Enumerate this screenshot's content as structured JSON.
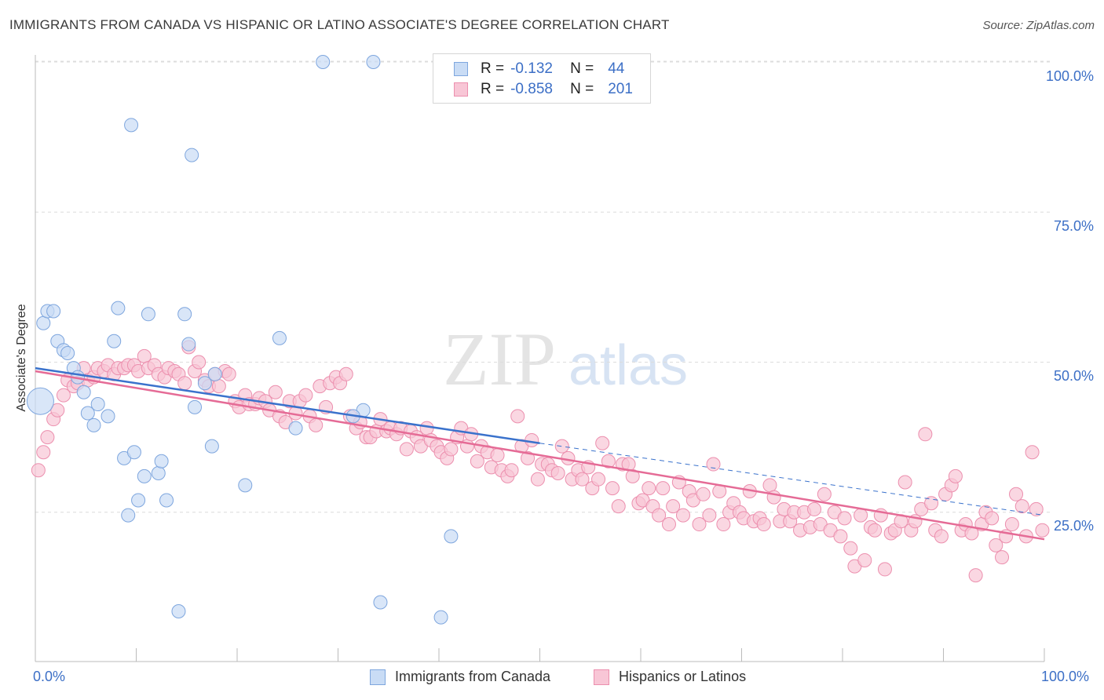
{
  "header": {
    "title": "IMMIGRANTS FROM CANADA VS HISPANIC OR LATINO ASSOCIATE'S DEGREE CORRELATION CHART",
    "source": "Source: ZipAtlas.com"
  },
  "legend": {
    "rows": [
      {
        "r_label": "R =",
        "r_value": "-0.132",
        "n_label": "N =",
        "n_value": "44"
      },
      {
        "r_label": "R =",
        "r_value": "-0.858",
        "n_label": "N =",
        "n_value": "201"
      }
    ]
  },
  "colors": {
    "blue_fill": "#c9dcf5",
    "blue_stroke": "#7ea6de",
    "blue_line": "#3a72cc",
    "pink_fill": "#f8c6d6",
    "pink_stroke": "#ec8fae",
    "pink_line": "#e56b96",
    "tick_text": "#3c6fc6",
    "grid": "#dcdcdc"
  },
  "chart_data": {
    "type": "scatter",
    "title": "IMMIGRANTS FROM CANADA VS HISPANIC OR LATINO ASSOCIATE'S DEGREE CORRELATION CHART",
    "xlabel": "",
    "ylabel": "Associate's Degree",
    "xlim": [
      0,
      100
    ],
    "ylim": [
      0,
      105
    ],
    "x_tick_labels": [
      "0.0%",
      "100.0%"
    ],
    "y_ticks": [
      {
        "value": 25,
        "label": "25.0%"
      },
      {
        "value": 50,
        "label": "50.0%"
      },
      {
        "value": 75,
        "label": "75.0%"
      },
      {
        "value": 100,
        "label": "100.0%"
      }
    ],
    "grid": true,
    "legend_position": "bottom",
    "watermark": {
      "text1": "ZIP",
      "text2": "atlas"
    },
    "series": [
      {
        "name": "Immigrants from Canada",
        "color": "#7ea6de",
        "points": [
          [
            0.5,
            43.5,
            "large"
          ],
          [
            0.8,
            56.5
          ],
          [
            1.2,
            58.5
          ],
          [
            1.8,
            58.5
          ],
          [
            2.2,
            53.5
          ],
          [
            2.8,
            52
          ],
          [
            3.2,
            51.5
          ],
          [
            3.8,
            49
          ],
          [
            4.2,
            47.5
          ],
          [
            4.8,
            45
          ],
          [
            5.2,
            41.5
          ],
          [
            5.8,
            39.5
          ],
          [
            6.2,
            43
          ],
          [
            7.2,
            41
          ],
          [
            7.8,
            53.5
          ],
          [
            8.2,
            59
          ],
          [
            8.8,
            34
          ],
          [
            9.8,
            35
          ],
          [
            9.2,
            24.5
          ],
          [
            9.5,
            89.5
          ],
          [
            10.2,
            27
          ],
          [
            10.8,
            31
          ],
          [
            11.2,
            58
          ],
          [
            12.2,
            31.5
          ],
          [
            12.5,
            33.5
          ],
          [
            13.0,
            27
          ],
          [
            14.2,
            8.5
          ],
          [
            14.8,
            58
          ],
          [
            15.2,
            53
          ],
          [
            15.5,
            84.5
          ],
          [
            15.8,
            42.5
          ],
          [
            16.8,
            46.5
          ],
          [
            17.5,
            36
          ],
          [
            17.8,
            48
          ],
          [
            20.8,
            29.5
          ],
          [
            24.2,
            54
          ],
          [
            25.8,
            39
          ],
          [
            28.5,
            100
          ],
          [
            32.5,
            42
          ],
          [
            33.5,
            100
          ],
          [
            34.2,
            10
          ],
          [
            41.2,
            21
          ],
          [
            40.2,
            7.5
          ],
          [
            31.5,
            41
          ]
        ]
      },
      {
        "name": "Hispanics or Latinos",
        "color": "#ec8fae",
        "points": [
          [
            0.3,
            32
          ],
          [
            0.8,
            35
          ],
          [
            1.2,
            37.5
          ],
          [
            1.8,
            40.5
          ],
          [
            2.2,
            42
          ],
          [
            2.8,
            44.5
          ],
          [
            3.2,
            47
          ],
          [
            3.8,
            46
          ],
          [
            4.2,
            46.5
          ],
          [
            4.8,
            49
          ],
          [
            5.2,
            47
          ],
          [
            5.8,
            47.5
          ],
          [
            6.2,
            49
          ],
          [
            6.8,
            48.5
          ],
          [
            7.2,
            49.5
          ],
          [
            7.8,
            48
          ],
          [
            8.2,
            49
          ],
          [
            8.8,
            49
          ],
          [
            9.2,
            49.5
          ],
          [
            9.8,
            49.5
          ],
          [
            10.2,
            48.5
          ],
          [
            10.8,
            51
          ],
          [
            11.2,
            49
          ],
          [
            11.8,
            49.5
          ],
          [
            12.2,
            48
          ],
          [
            12.8,
            47.5
          ],
          [
            13.2,
            49
          ],
          [
            13.8,
            48.5
          ],
          [
            14.2,
            48
          ],
          [
            14.8,
            46.5
          ],
          [
            15.2,
            52.5
          ],
          [
            15.8,
            48.5
          ],
          [
            16.2,
            50
          ],
          [
            16.8,
            47
          ],
          [
            17.2,
            46
          ],
          [
            17.8,
            48
          ],
          [
            18.2,
            46
          ],
          [
            18.8,
            48.5
          ],
          [
            19.2,
            48
          ],
          [
            19.8,
            43.5
          ],
          [
            20.2,
            42.5
          ],
          [
            20.8,
            44.5
          ],
          [
            21.2,
            43
          ],
          [
            21.8,
            43
          ],
          [
            22.2,
            44
          ],
          [
            22.8,
            43.5
          ],
          [
            23.2,
            42
          ],
          [
            23.8,
            45
          ],
          [
            24.2,
            41
          ],
          [
            24.8,
            40
          ],
          [
            25.2,
            43.5
          ],
          [
            25.8,
            41.5
          ],
          [
            26.2,
            43.5
          ],
          [
            26.8,
            44.5
          ],
          [
            27.2,
            41
          ],
          [
            27.8,
            39.5
          ],
          [
            28.2,
            46
          ],
          [
            28.8,
            42.5
          ],
          [
            29.2,
            46.5
          ],
          [
            29.8,
            47.5
          ],
          [
            30.2,
            46.5
          ],
          [
            30.8,
            48
          ],
          [
            31.2,
            41
          ],
          [
            31.8,
            39
          ],
          [
            32.2,
            40
          ],
          [
            32.8,
            37.5
          ],
          [
            33.2,
            37.5
          ],
          [
            33.8,
            38.5
          ],
          [
            34.2,
            40.5
          ],
          [
            34.8,
            38.5
          ],
          [
            35.2,
            39
          ],
          [
            35.8,
            38
          ],
          [
            36.2,
            39
          ],
          [
            36.8,
            35.5
          ],
          [
            37.2,
            38.5
          ],
          [
            37.8,
            37.5
          ],
          [
            38.2,
            36
          ],
          [
            38.8,
            39
          ],
          [
            39.2,
            37
          ],
          [
            39.8,
            36
          ],
          [
            40.2,
            35
          ],
          [
            40.8,
            34
          ],
          [
            41.2,
            35.5
          ],
          [
            41.8,
            37.5
          ],
          [
            42.2,
            39
          ],
          [
            42.8,
            36
          ],
          [
            43.2,
            38
          ],
          [
            43.8,
            33.5
          ],
          [
            44.2,
            36
          ],
          [
            44.8,
            35
          ],
          [
            45.2,
            32.5
          ],
          [
            45.8,
            34.5
          ],
          [
            46.2,
            32
          ],
          [
            46.8,
            31
          ],
          [
            47.2,
            32
          ],
          [
            47.8,
            41
          ],
          [
            48.2,
            36
          ],
          [
            48.8,
            34
          ],
          [
            49.2,
            37
          ],
          [
            49.8,
            30.5
          ],
          [
            50.2,
            33
          ],
          [
            50.8,
            33
          ],
          [
            51.2,
            32
          ],
          [
            51.8,
            31.5
          ],
          [
            52.2,
            36
          ],
          [
            52.8,
            34
          ],
          [
            53.2,
            30.5
          ],
          [
            53.8,
            32
          ],
          [
            54.2,
            30.5
          ],
          [
            54.8,
            32.5
          ],
          [
            55.2,
            29
          ],
          [
            55.8,
            30.5
          ],
          [
            56.2,
            36.5
          ],
          [
            56.8,
            33.5
          ],
          [
            57.2,
            29
          ],
          [
            57.8,
            26
          ],
          [
            58.2,
            33
          ],
          [
            58.8,
            33
          ],
          [
            59.2,
            31
          ],
          [
            59.8,
            26.5
          ],
          [
            60.2,
            27
          ],
          [
            60.8,
            29
          ],
          [
            61.2,
            26
          ],
          [
            61.8,
            24.5
          ],
          [
            62.2,
            29
          ],
          [
            62.8,
            23
          ],
          [
            63.2,
            26
          ],
          [
            63.8,
            30
          ],
          [
            64.2,
            24.5
          ],
          [
            64.8,
            28.5
          ],
          [
            65.2,
            27
          ],
          [
            65.8,
            23
          ],
          [
            66.2,
            28
          ],
          [
            66.8,
            24.5
          ],
          [
            67.2,
            33
          ],
          [
            67.8,
            28.5
          ],
          [
            68.2,
            23
          ],
          [
            68.8,
            25
          ],
          [
            69.2,
            26.5
          ],
          [
            69.8,
            25
          ],
          [
            70.2,
            24
          ],
          [
            70.8,
            28.5
          ],
          [
            71.2,
            23.5
          ],
          [
            71.8,
            24
          ],
          [
            72.2,
            23
          ],
          [
            72.8,
            29.5
          ],
          [
            73.2,
            27.5
          ],
          [
            73.8,
            23.5
          ],
          [
            74.2,
            25.5
          ],
          [
            74.8,
            23.5
          ],
          [
            75.2,
            25
          ],
          [
            75.8,
            22
          ],
          [
            76.2,
            25
          ],
          [
            76.8,
            22.5
          ],
          [
            77.2,
            25.5
          ],
          [
            77.8,
            23
          ],
          [
            78.2,
            28
          ],
          [
            78.8,
            22
          ],
          [
            79.2,
            25
          ],
          [
            79.8,
            21
          ],
          [
            80.2,
            24
          ],
          [
            80.8,
            19
          ],
          [
            81.2,
            16
          ],
          [
            81.8,
            24.5
          ],
          [
            82.2,
            17
          ],
          [
            82.8,
            22.5
          ],
          [
            83.2,
            22
          ],
          [
            83.8,
            24.5
          ],
          [
            84.2,
            15.5
          ],
          [
            84.8,
            21.5
          ],
          [
            85.2,
            22
          ],
          [
            85.8,
            23.5
          ],
          [
            86.2,
            30
          ],
          [
            86.8,
            22
          ],
          [
            87.2,
            23.5
          ],
          [
            87.8,
            25.5
          ],
          [
            88.2,
            38
          ],
          [
            88.8,
            26.5
          ],
          [
            89.2,
            22
          ],
          [
            89.8,
            21
          ],
          [
            90.2,
            28
          ],
          [
            90.8,
            29.5
          ],
          [
            91.2,
            31
          ],
          [
            91.8,
            22
          ],
          [
            92.2,
            23
          ],
          [
            92.8,
            21.5
          ],
          [
            93.2,
            14.5
          ],
          [
            93.8,
            23
          ],
          [
            94.2,
            25
          ],
          [
            94.8,
            24
          ],
          [
            95.2,
            19.5
          ],
          [
            95.8,
            17.5
          ],
          [
            96.2,
            21
          ],
          [
            96.8,
            23
          ],
          [
            97.2,
            28
          ],
          [
            97.8,
            26
          ],
          [
            98.2,
            21
          ],
          [
            98.8,
            35
          ],
          [
            99.2,
            25.5
          ],
          [
            99.8,
            22
          ]
        ]
      }
    ],
    "trend_lines": [
      {
        "series": "Immigrants from Canada",
        "x": [
          0,
          50
        ],
        "y": [
          49,
          36.5
        ],
        "style": "solid"
      },
      {
        "series": "Immigrants from Canada",
        "x": [
          50,
          100
        ],
        "y": [
          36.5,
          24.5
        ],
        "style": "dashed"
      },
      {
        "series": "Hispanics or Latinos",
        "x": [
          0,
          100
        ],
        "y": [
          48.5,
          20.5
        ],
        "style": "solid"
      }
    ]
  },
  "bottom_legend": {
    "items": [
      "Immigrants from Canada",
      "Hispanics or Latinos"
    ]
  }
}
